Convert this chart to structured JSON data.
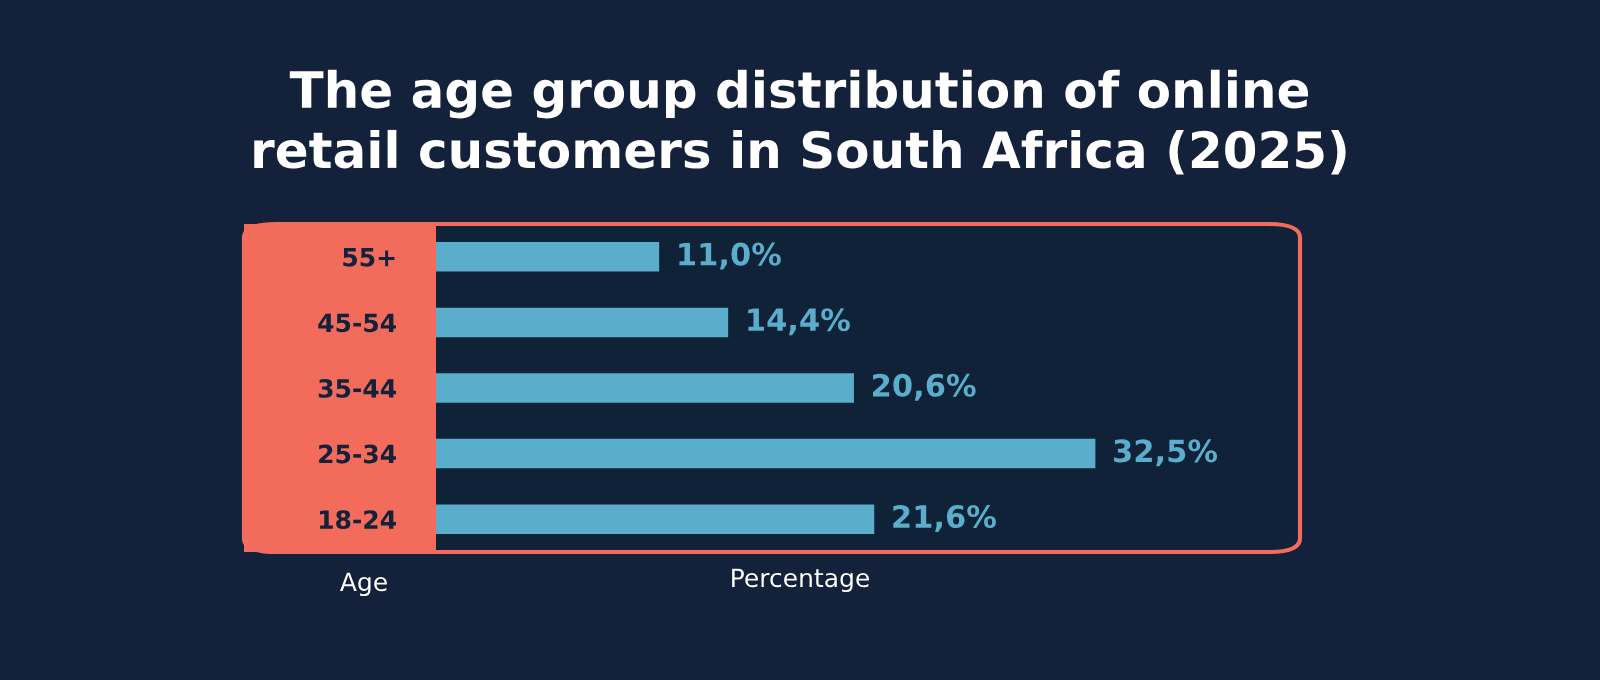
{
  "chart_data": {
    "type": "bar",
    "orientation": "horizontal",
    "title": "The age group distribution of online\nretail customers in South Africa (2025)",
    "xlabel": "Percentage",
    "ylabel": "Age",
    "categories": [
      "55+",
      "45-54",
      "35-44",
      "25-34",
      "18-24"
    ],
    "values": [
      11.0,
      14.4,
      20.6,
      32.5,
      21.6
    ],
    "value_labels": [
      "11,0%",
      "14,4%",
      "20,6%",
      "32,5%",
      "21,6%"
    ],
    "color": "#5aaecb",
    "grid": false,
    "legend": false
  }
}
